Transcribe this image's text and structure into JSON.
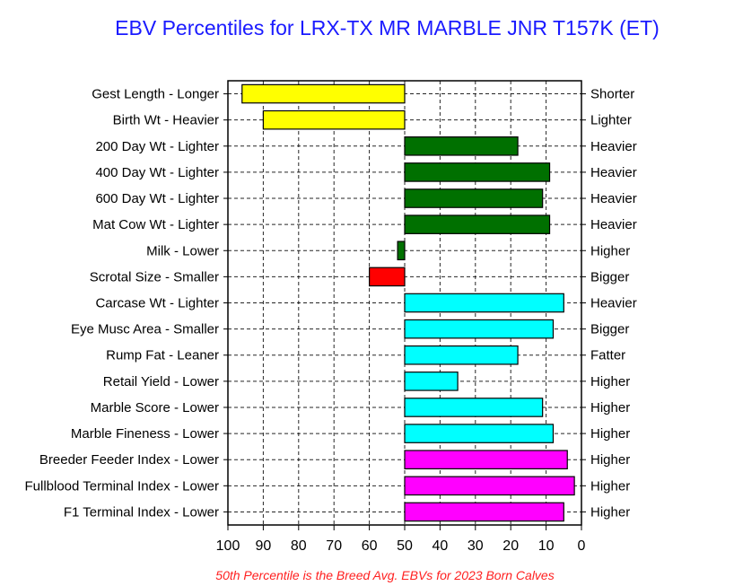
{
  "title": "EBV Percentiles for LRX-TX MR MARBLE JNR T157K (ET)",
  "footnote": "50th Percentile is the Breed Avg. EBVs for 2023 Born Calves",
  "chart_data": {
    "type": "bar",
    "orientation": "horizontal",
    "title": "EBV Percentiles for LRX-TX MR MARBLE JNR T157K (ET)",
    "xlabel": "",
    "ylabel": "",
    "xlim": [
      100,
      0
    ],
    "x_axis_reversed": true,
    "baseline": 50,
    "xticks": [
      100,
      90,
      80,
      70,
      60,
      50,
      40,
      30,
      20,
      10,
      0
    ],
    "grid": true,
    "colors": {
      "yellow": "#ffff00",
      "green": "#007000",
      "red": "#ff0000",
      "cyan": "#00ffff",
      "magenta": "#ff00ff"
    },
    "categories": [
      "Gest Length - Longer",
      "Birth Wt - Heavier",
      "200 Day Wt - Lighter",
      "400 Day Wt - Lighter",
      "600 Day Wt - Lighter",
      "Mat Cow Wt - Lighter",
      "Milk - Lower",
      "Scrotal Size - Smaller",
      "Carcase Wt - Lighter",
      "Eye Musc Area - Smaller",
      "Rump Fat - Leaner",
      "Retail Yield - Lower",
      "Marble Score - Lower",
      "Marble Fineness - Lower",
      "Breeder Feeder Index - Lower",
      "Fullblood Terminal Index - Lower",
      "F1 Terminal Index - Lower"
    ],
    "right_labels": [
      "Shorter",
      "Lighter",
      "Heavier",
      "Heavier",
      "Heavier",
      "Heavier",
      "Higher",
      "Bigger",
      "Heavier",
      "Bigger",
      "Fatter",
      "Higher",
      "Higher",
      "Higher",
      "Higher",
      "Higher",
      "Higher"
    ],
    "values": [
      96,
      90,
      18,
      9,
      11,
      9,
      52,
      60,
      5,
      8,
      18,
      35,
      11,
      8,
      4,
      2,
      5
    ],
    "bar_colors": [
      "#ffff00",
      "#ffff00",
      "#007000",
      "#007000",
      "#007000",
      "#007000",
      "#007000",
      "#ff0000",
      "#00ffff",
      "#00ffff",
      "#00ffff",
      "#00ffff",
      "#00ffff",
      "#00ffff",
      "#ff00ff",
      "#ff00ff",
      "#ff00ff"
    ]
  }
}
